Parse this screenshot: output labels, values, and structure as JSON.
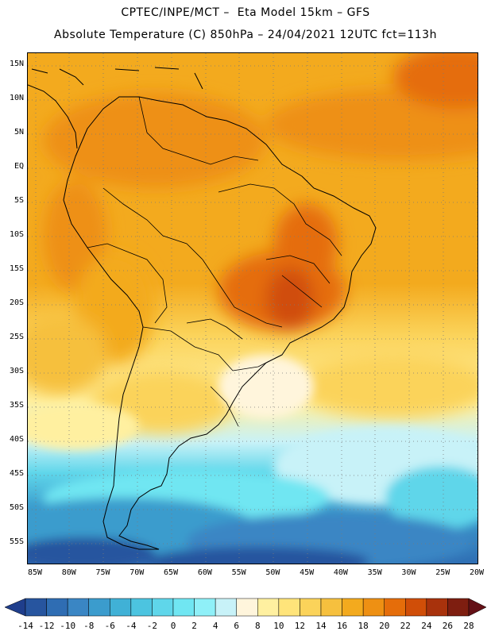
{
  "header": {
    "line1": "CPTEC/INPE/MCT –  Eta Model 15km – GFS",
    "line2": "Absolute Temperature (C) 850hPa – 24/04/2021 12UTC fct=113h"
  },
  "axes": {
    "lat_labels": [
      "15N",
      "10N",
      "5N",
      "EQ",
      "5S",
      "10S",
      "15S",
      "20S",
      "25S",
      "30S",
      "35S",
      "40S",
      "45S",
      "50S",
      "55S"
    ],
    "lon_labels": [
      "85W",
      "80W",
      "75W",
      "70W",
      "65W",
      "60W",
      "55W",
      "50W",
      "45W",
      "40W",
      "35W",
      "30W",
      "25W",
      "20W"
    ]
  },
  "colorbar": {
    "labels": [
      "-14",
      "-12",
      "-10",
      "-8",
      "-6",
      "-4",
      "-2",
      "0",
      "2",
      "4",
      "6",
      "8",
      "10",
      "12",
      "14",
      "16",
      "18",
      "20",
      "22",
      "24",
      "26",
      "28"
    ],
    "colors": [
      "#1f3e8c",
      "#27559f",
      "#2f6db3",
      "#3a86c4",
      "#3b9ccd",
      "#40b1d6",
      "#4cc4e0",
      "#5fd6ea",
      "#70e6f2",
      "#8ff0f8",
      "#c8f2f8",
      "#fff5dc",
      "#fff0a0",
      "#ffe47a",
      "#fbd35a",
      "#f6c03e",
      "#f3aa1e",
      "#ee9013",
      "#e56d0a",
      "#d04e08",
      "#a8320c",
      "#7e1e10",
      "#641016"
    ]
  },
  "colors": {
    "land_border": "#000000",
    "grid_dots": "#7a7a7a"
  }
}
